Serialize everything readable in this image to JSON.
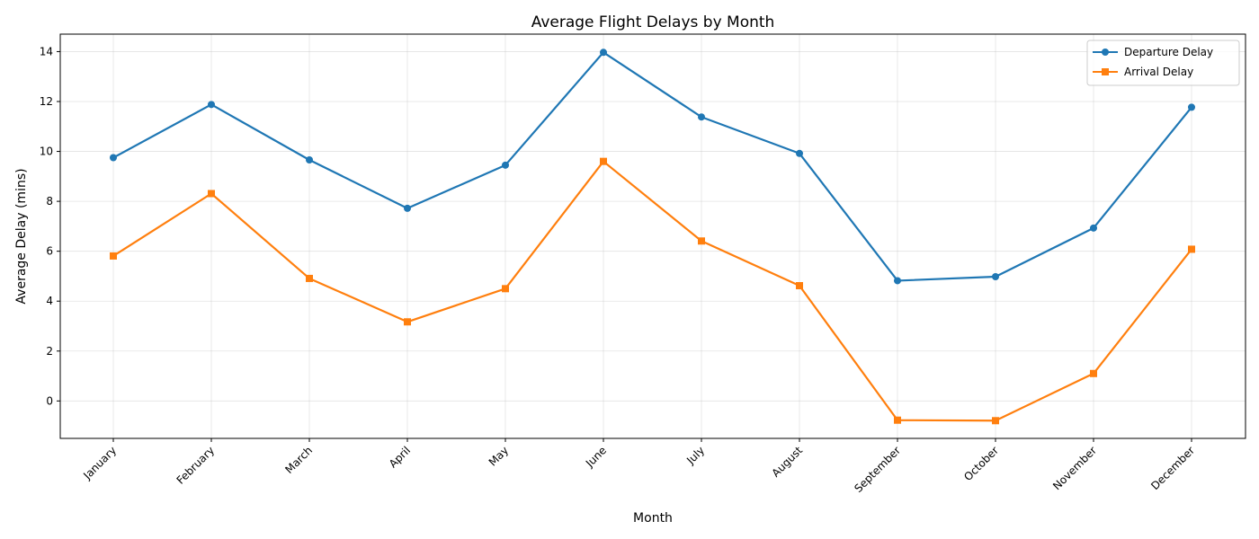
{
  "chart_data": {
    "type": "line",
    "title": "Average Flight Delays by Month",
    "xlabel": "Month",
    "ylabel": "Average Delay (mins)",
    "categories": [
      "January",
      "February",
      "March",
      "April",
      "May",
      "June",
      "July",
      "August",
      "September",
      "October",
      "November",
      "December"
    ],
    "yticks": [
      0,
      2,
      4,
      6,
      8,
      10,
      12,
      14
    ],
    "ylim": [
      -1.5,
      14.7
    ],
    "grid": true,
    "legend_position": "top-right",
    "series": [
      {
        "name": "Departure Delay",
        "color": "#1f77b4",
        "marker": "circle",
        "values": [
          9.75,
          11.88,
          9.66,
          7.72,
          9.45,
          13.97,
          11.38,
          9.92,
          4.82,
          4.98,
          6.93,
          11.77
        ]
      },
      {
        "name": "Arrival Delay",
        "color": "#ff7f0e",
        "marker": "square",
        "values": [
          5.81,
          8.31,
          4.91,
          3.17,
          4.5,
          9.6,
          6.41,
          4.62,
          -0.77,
          -0.79,
          1.1,
          6.08
        ]
      }
    ]
  }
}
